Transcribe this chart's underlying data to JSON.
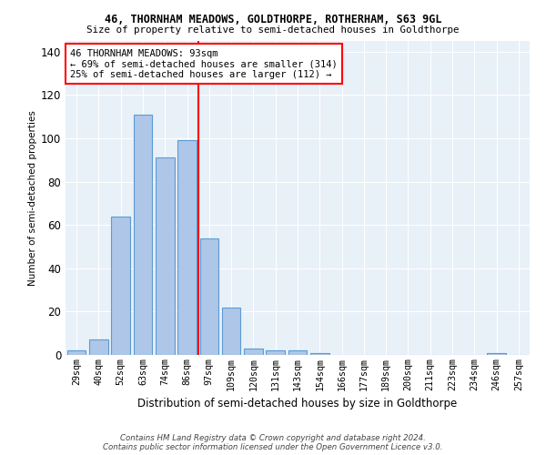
{
  "title1": "46, THORNHAM MEADOWS, GOLDTHORPE, ROTHERHAM, S63 9GL",
  "title2": "Size of property relative to semi-detached houses in Goldthorpe",
  "xlabel": "Distribution of semi-detached houses by size in Goldthorpe",
  "ylabel": "Number of semi-detached properties",
  "categories": [
    "29sqm",
    "40sqm",
    "52sqm",
    "63sqm",
    "74sqm",
    "86sqm",
    "97sqm",
    "109sqm",
    "120sqm",
    "131sqm",
    "143sqm",
    "154sqm",
    "166sqm",
    "177sqm",
    "189sqm",
    "200sqm",
    "211sqm",
    "223sqm",
    "234sqm",
    "246sqm",
    "257sqm"
  ],
  "values": [
    2,
    7,
    64,
    111,
    91,
    99,
    54,
    22,
    3,
    2,
    2,
    1,
    0,
    0,
    0,
    0,
    0,
    0,
    0,
    1,
    0
  ],
  "bar_color": "#aec6e8",
  "bar_edge_color": "#5b9bd5",
  "vline_color": "red",
  "vline_index": 6,
  "annotation_text_line1": "46 THORNHAM MEADOWS: 93sqm",
  "annotation_text_line2": "← 69% of semi-detached houses are smaller (314)",
  "annotation_text_line3": "25% of semi-detached houses are larger (112) →",
  "ylim": [
    0,
    145
  ],
  "yticks": [
    0,
    20,
    40,
    60,
    80,
    100,
    120,
    140
  ],
  "background_color": "#e8f0f8",
  "footer1": "Contains HM Land Registry data © Crown copyright and database right 2024.",
  "footer2": "Contains public sector information licensed under the Open Government Licence v3.0."
}
